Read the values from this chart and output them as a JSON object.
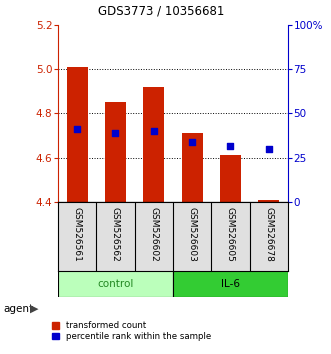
{
  "title": "GDS3773 / 10356681",
  "samples": [
    "GSM526561",
    "GSM526562",
    "GSM526602",
    "GSM526603",
    "GSM526605",
    "GSM526678"
  ],
  "bar_bottom": 4.4,
  "transformed_counts": [
    5.01,
    4.85,
    4.92,
    4.71,
    4.61,
    4.41
  ],
  "percentile_ranks": [
    4.73,
    4.71,
    4.72,
    4.67,
    4.65,
    4.64
  ],
  "ylim_left": [
    4.4,
    5.2
  ],
  "ylim_right": [
    0,
    100
  ],
  "yticks_left": [
    4.4,
    4.6,
    4.8,
    5.0,
    5.2
  ],
  "yticks_right": [
    0,
    25,
    50,
    75,
    100
  ],
  "bar_color": "#cc2200",
  "dot_color": "#0000cc",
  "control_color": "#bbffbb",
  "il6_color": "#33cc33",
  "group_label_color_ctrl": "#228822",
  "group_label_color_il6": "#000000",
  "left_axis_color": "#cc2200",
  "right_axis_color": "#0000cc",
  "bar_width": 0.55,
  "n_control": 3,
  "n_il6": 3
}
